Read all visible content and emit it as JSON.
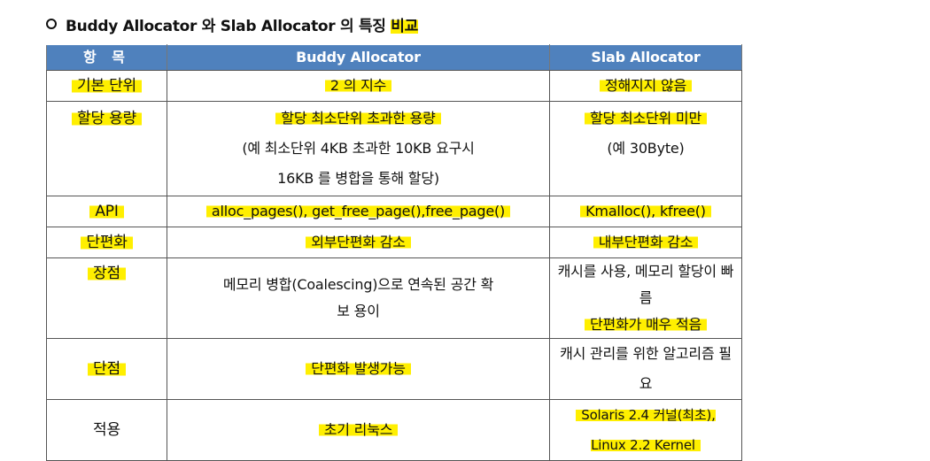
{
  "title": {
    "prefix": "Buddy Allocator 와 Slab Allocator 의 특징 ",
    "highlight": "비교"
  },
  "table": {
    "headers": [
      "항 목",
      "Buddy Allocator",
      "Slab Allocator"
    ],
    "rows": [
      {
        "item": "기본 단위",
        "buddy": [
          "2 의 지수"
        ],
        "slab": [
          "정해지지 않음"
        ]
      },
      {
        "item": "할당 용량",
        "buddy": [
          "할당 최소단위 초과한 용량",
          "(예 최소단위 4KB 초과한 10KB 요구시",
          "16KB 를 병합을 통해 할당)"
        ],
        "slab": [
          "할당 최소단위 미만",
          "(예 30Byte)"
        ]
      },
      {
        "item": "API",
        "buddy": [
          "alloc_pages(), get_free_page(),free_page()"
        ],
        "slab": [
          "Kmalloc(), kfree()"
        ]
      },
      {
        "item": "단편화",
        "buddy": [
          "외부단편화 감소"
        ],
        "slab": [
          "내부단편화 감소"
        ]
      },
      {
        "item": "장점",
        "buddy": [
          "메모리 병합(Coalescing)으로 연속된 공간 확",
          "보 용이"
        ],
        "slab": [
          "캐시를 사용, 메모리 할당이 빠름",
          "단편화가 매우 적음"
        ]
      },
      {
        "item": "단점",
        "buddy": [
          "단편화 발생가능"
        ],
        "slab": [
          "캐시 관리를 위한 알고리즘 필요"
        ]
      },
      {
        "item": "적용",
        "buddy": [
          "초기 리눅스"
        ],
        "slab": [
          "Solaris 2.4 커널(최초), Linux 2.2 Kernel"
        ]
      }
    ]
  }
}
